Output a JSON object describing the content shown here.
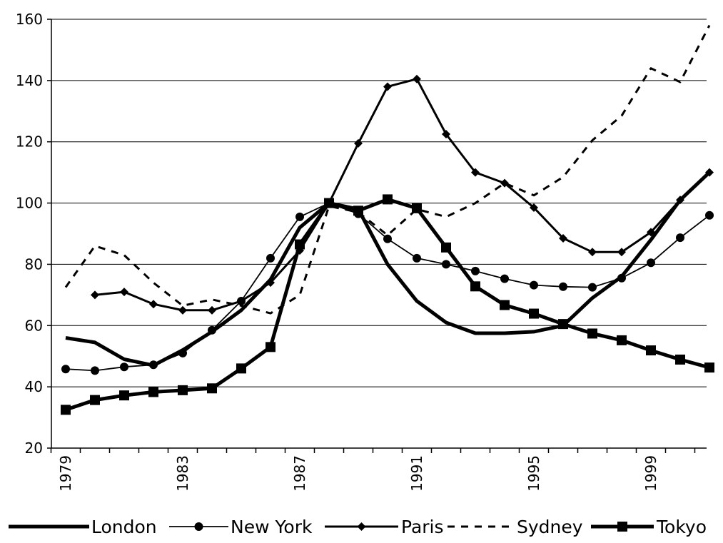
{
  "chart_data": {
    "type": "line",
    "title": "",
    "xlabel": "",
    "ylabel": "",
    "x": [
      1979,
      1980,
      1981,
      1982,
      1983,
      1984,
      1985,
      1986,
      1987,
      1988,
      1989,
      1990,
      1991,
      1992,
      1993,
      1994,
      1995,
      1996,
      1997,
      1998,
      1999,
      2000,
      2001
    ],
    "x_tick_labels": [
      "1979",
      "1983",
      "1987",
      "1991",
      "1995",
      "1999"
    ],
    "x_tick_values": [
      1979,
      1983,
      1987,
      1991,
      1995,
      1999
    ],
    "ylim": [
      20,
      160
    ],
    "y_ticks": [
      20,
      40,
      60,
      80,
      100,
      120,
      140,
      160
    ],
    "y_tick_labels": [
      "20",
      "40",
      "60",
      "80",
      "100",
      "120",
      "140",
      "160"
    ],
    "grid": "horizontal",
    "legend_position": "bottom",
    "series": [
      {
        "name": "London",
        "style": "thick-solid",
        "marker": "none",
        "values": [
          56,
          54.5,
          49,
          47,
          52,
          58,
          65,
          75,
          92,
          100,
          98,
          80,
          68,
          61,
          57.5,
          57.5,
          58,
          60,
          69,
          76,
          88,
          101,
          110
        ]
      },
      {
        "name": "New York",
        "style": "thin-solid",
        "marker": "circle",
        "values": [
          45.8,
          45.3,
          46.5,
          47.2,
          51,
          58.5,
          68,
          82,
          95.5,
          100,
          96.5,
          88.3,
          82,
          80,
          77.8,
          75.3,
          73.2,
          72.7,
          72.5,
          75.5,
          80.5,
          88.7,
          96
        ]
      },
      {
        "name": "Paris",
        "style": "medium-solid",
        "marker": "diamond",
        "values": [
          null,
          70,
          71,
          67,
          65,
          65,
          68,
          74,
          84.5,
          100,
          119.5,
          138,
          140.5,
          122.5,
          110,
          106.5,
          98.5,
          88.5,
          84,
          84,
          90.5,
          101,
          110
        ]
      },
      {
        "name": "Sydney",
        "style": "dashed",
        "marker": "none",
        "values": [
          72.5,
          86,
          83,
          74,
          66.5,
          68.5,
          66.5,
          64,
          70,
          99,
          97,
          89.5,
          98,
          95.5,
          100,
          106.5,
          102.5,
          108.5,
          120.5,
          128.5,
          144,
          139.5,
          158
        ]
      },
      {
        "name": "Tokyo",
        "style": "thick-solid",
        "marker": "square",
        "values": [
          32.5,
          35.7,
          37.2,
          38.3,
          38.9,
          39.5,
          46,
          53,
          86.5,
          100,
          97.5,
          101.2,
          98.3,
          85.5,
          72.8,
          66.7,
          63.9,
          60.5,
          57.4,
          55.2,
          51.9,
          48.9,
          46.3
        ]
      }
    ]
  }
}
